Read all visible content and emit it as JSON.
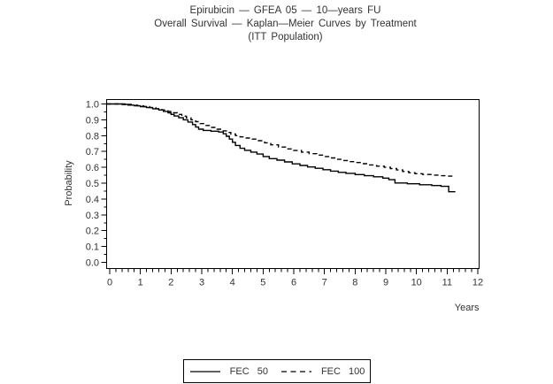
{
  "title": {
    "line1": "Epirubicin — GFEA 05 — 10—years FU",
    "line2": "Overall Survival — Kaplan—Meier Curves by Treatment",
    "line3": "(ITT Population)"
  },
  "axes": {
    "x_label": "Years",
    "y_label": "Probability"
  },
  "legend": [
    {
      "label": "FEC 50",
      "line": "solid"
    },
    {
      "label": "FEC 100",
      "line": "dashed"
    }
  ],
  "colors": {
    "line": "#000000",
    "text": "#333333",
    "background": "#ffffff"
  },
  "chart_data": {
    "type": "line",
    "subtype": "kaplan_meier_step",
    "title": "Epirubicin — GFEA 05 — 10—years FU / Overall Survival — Kaplan—Meier Curves by Treatment (ITT Population)",
    "xlabel": "Years",
    "ylabel": "Probability",
    "xlim": [
      0,
      12
    ],
    "ylim": [
      0.0,
      1.0
    ],
    "x_tick_labels": [
      "0",
      "1",
      "2",
      "3",
      "4",
      "5",
      "6",
      "7",
      "8",
      "9",
      "10",
      "11",
      "12"
    ],
    "y_tick_labels": [
      "0.0",
      "0.1",
      "0.2",
      "0.3",
      "0.4",
      "0.5",
      "0.6",
      "0.7",
      "0.8",
      "0.9",
      "1.0"
    ],
    "x_minor_tick_step": 0.2,
    "y_minor_tick_step": 0.05,
    "grid": false,
    "frame": true,
    "legend_position": "bottom-center",
    "series": [
      {
        "name": "FEC 50",
        "line": "solid",
        "points": [
          [
            0,
            1.0
          ],
          [
            0.4,
            0.997
          ],
          [
            0.6,
            0.993
          ],
          [
            0.8,
            0.988
          ],
          [
            1.0,
            0.983
          ],
          [
            1.2,
            0.977
          ],
          [
            1.4,
            0.97
          ],
          [
            1.6,
            0.962
          ],
          [
            1.75,
            0.953
          ],
          [
            1.9,
            0.944
          ],
          [
            2.0,
            0.934
          ],
          [
            2.1,
            0.924
          ],
          [
            2.25,
            0.913
          ],
          [
            2.4,
            0.9
          ],
          [
            2.55,
            0.886
          ],
          [
            2.7,
            0.87
          ],
          [
            2.8,
            0.854
          ],
          [
            2.9,
            0.841
          ],
          [
            3.05,
            0.833
          ],
          [
            3.3,
            0.828
          ],
          [
            3.55,
            0.823
          ],
          [
            3.7,
            0.812
          ],
          [
            3.8,
            0.796
          ],
          [
            3.9,
            0.778
          ],
          [
            4.0,
            0.758
          ],
          [
            4.1,
            0.738
          ],
          [
            4.25,
            0.72
          ],
          [
            4.4,
            0.707
          ],
          [
            4.6,
            0.696
          ],
          [
            4.8,
            0.684
          ],
          [
            5.0,
            0.668
          ],
          [
            5.2,
            0.655
          ],
          [
            5.45,
            0.645
          ],
          [
            5.7,
            0.634
          ],
          [
            5.95,
            0.622
          ],
          [
            6.2,
            0.612
          ],
          [
            6.45,
            0.602
          ],
          [
            6.7,
            0.594
          ],
          [
            6.95,
            0.585
          ],
          [
            7.2,
            0.576
          ],
          [
            7.45,
            0.568
          ],
          [
            7.7,
            0.562
          ],
          [
            8.0,
            0.554
          ],
          [
            8.3,
            0.547
          ],
          [
            8.6,
            0.54
          ],
          [
            8.9,
            0.532
          ],
          [
            9.1,
            0.522
          ],
          [
            9.3,
            0.501
          ],
          [
            9.7,
            0.496
          ],
          [
            10.1,
            0.49
          ],
          [
            10.5,
            0.485
          ],
          [
            10.8,
            0.48
          ],
          [
            11.05,
            0.446
          ],
          [
            11.25,
            0.443
          ]
        ]
      },
      {
        "name": "FEC 100",
        "line": "dashed",
        "points": [
          [
            0,
            1.0
          ],
          [
            0.5,
            0.997
          ],
          [
            0.7,
            0.993
          ],
          [
            0.9,
            0.988
          ],
          [
            1.1,
            0.983
          ],
          [
            1.3,
            0.977
          ],
          [
            1.5,
            0.97
          ],
          [
            1.7,
            0.962
          ],
          [
            1.9,
            0.953
          ],
          [
            2.05,
            0.944
          ],
          [
            2.2,
            0.934
          ],
          [
            2.35,
            0.923
          ],
          [
            2.5,
            0.912
          ],
          [
            2.65,
            0.9
          ],
          [
            2.8,
            0.888
          ],
          [
            2.95,
            0.876
          ],
          [
            3.1,
            0.864
          ],
          [
            3.3,
            0.852
          ],
          [
            3.5,
            0.841
          ],
          [
            3.7,
            0.83
          ],
          [
            3.85,
            0.82
          ],
          [
            3.95,
            0.81
          ],
          [
            4.1,
            0.8
          ],
          [
            4.25,
            0.792
          ],
          [
            4.45,
            0.785
          ],
          [
            4.65,
            0.778
          ],
          [
            4.85,
            0.768
          ],
          [
            5.05,
            0.755
          ],
          [
            5.25,
            0.742
          ],
          [
            5.5,
            0.728
          ],
          [
            5.75,
            0.716
          ],
          [
            6.0,
            0.706
          ],
          [
            6.25,
            0.696
          ],
          [
            6.5,
            0.686
          ],
          [
            6.75,
            0.677
          ],
          [
            7.0,
            0.668
          ],
          [
            7.2,
            0.659
          ],
          [
            7.4,
            0.65
          ],
          [
            7.6,
            0.643
          ],
          [
            7.8,
            0.636
          ],
          [
            8.0,
            0.63
          ],
          [
            8.2,
            0.623
          ],
          [
            8.45,
            0.615
          ],
          [
            8.7,
            0.607
          ],
          [
            8.95,
            0.6
          ],
          [
            9.15,
            0.592
          ],
          [
            9.35,
            0.583
          ],
          [
            9.55,
            0.574
          ],
          [
            9.75,
            0.566
          ],
          [
            9.95,
            0.56
          ],
          [
            10.2,
            0.555
          ],
          [
            10.5,
            0.551
          ],
          [
            10.8,
            0.547
          ],
          [
            11.0,
            0.544
          ],
          [
            11.15,
            0.54
          ]
        ]
      }
    ]
  }
}
